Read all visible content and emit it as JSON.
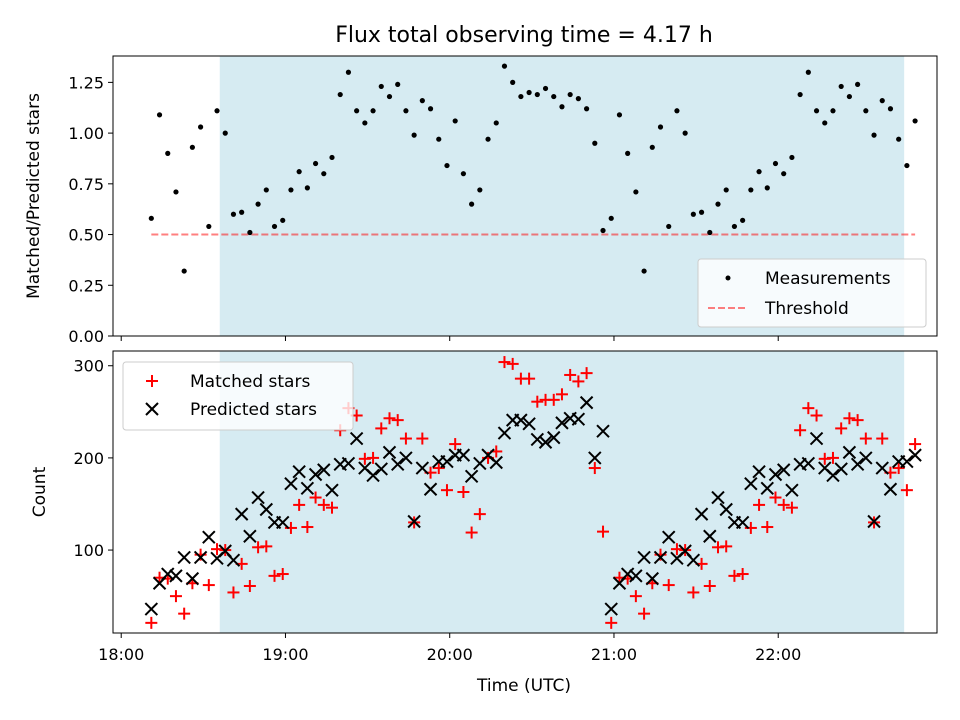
{
  "title": "Flux total observing time = 4.17 h",
  "xlabel": "Time (UTC)",
  "x_ticks": [
    "18:00",
    "19:00",
    "20:00",
    "21:00",
    "22:00"
  ],
  "colors": {
    "highlight": "#add8e6",
    "measurements": "#000000",
    "threshold": "#ff0000",
    "matched": "#ff0000",
    "predicted": "#000000"
  },
  "chart_data": [
    {
      "type": "scatter",
      "ylabel": "Matched/Predicted stars",
      "ylim": [
        0,
        1.38
      ],
      "y_ticks": [
        "0.00",
        "0.25",
        "0.50",
        "0.75",
        "1.00",
        "1.25"
      ],
      "y_tick_values": [
        0,
        0.25,
        0.5,
        0.75,
        1.0,
        1.25
      ],
      "xlim": [
        "17:57",
        "22:58"
      ],
      "highlight_span": [
        "18:36",
        "22:46"
      ],
      "legend_position": "bottom-right",
      "series": [
        {
          "name": "Measurements",
          "marker": "dot",
          "x": [
            "18:11",
            "18:14",
            "18:17",
            "18:20",
            "18:23",
            "18:26",
            "18:29",
            "18:32",
            "18:35",
            "18:38",
            "18:41",
            "18:44",
            "18:47",
            "18:50",
            "18:53",
            "18:56",
            "18:59",
            "19:02",
            "19:05",
            "19:08",
            "19:11",
            "19:14",
            "19:17",
            "19:20",
            "19:23",
            "19:26",
            "19:29",
            "19:32",
            "19:35",
            "19:38",
            "19:41",
            "19:44",
            "19:47",
            "19:50",
            "19:53",
            "19:56",
            "19:59",
            "20:02",
            "20:05",
            "20:08",
            "20:11",
            "20:14",
            "20:17",
            "20:20",
            "20:23",
            "20:26",
            "20:29",
            "20:32",
            "20:35",
            "20:38",
            "20:41",
            "20:44",
            "20:47",
            "20:50",
            "20:53",
            "20:56",
            "20:59",
            "21:02",
            "21:05",
            "21:08",
            "21:11",
            "21:14",
            "21:17",
            "21:20",
            "21:23",
            "21:26",
            "21:29",
            "21:32",
            "21:35",
            "21:38",
            "21:41",
            "21:44",
            "21:47",
            "21:50",
            "21:53",
            "21:56",
            "21:59",
            "22:02",
            "22:05",
            "22:08",
            "22:11",
            "22:14",
            "22:17",
            "22:20",
            "22:23",
            "22:26",
            "22:29",
            "22:32",
            "22:35",
            "22:38",
            "22:41",
            "22:44",
            "22:47",
            "22:50"
          ],
          "y": [
            0.58,
            1.09,
            0.9,
            0.71,
            0.32,
            0.93,
            1.03,
            0.54,
            1.11,
            1.0,
            0.6,
            0.61,
            0.51,
            0.65,
            0.72,
            0.54,
            0.57,
            0.72,
            0.81,
            0.73,
            0.85,
            0.8,
            0.88,
            1.19,
            1.3,
            1.11,
            1.05,
            1.11,
            1.23,
            1.18,
            1.24,
            1.11,
            0.99,
            1.16,
            1.12,
            0.97,
            0.84,
            1.06,
            0.8,
            0.65,
            0.72,
            0.97,
            1.05,
            1.33,
            1.25,
            1.18,
            1.2,
            1.19,
            1.22,
            1.18,
            1.13,
            1.19,
            1.17,
            1.12,
            0.95,
            0.52,
            0.58,
            1.09,
            0.9,
            0.71,
            0.32,
            0.93,
            1.03,
            0.54,
            1.11,
            1.0,
            0.6,
            0.61,
            0.51,
            0.65,
            0.72,
            0.54,
            0.57,
            0.72,
            0.81,
            0.73,
            0.85,
            0.8,
            0.88,
            1.19,
            1.3,
            1.11,
            1.05,
            1.11,
            1.23,
            1.18,
            1.24,
            1.11,
            0.99,
            1.16,
            1.12,
            0.97,
            0.84,
            1.06
          ]
        },
        {
          "name": "Threshold",
          "marker": "dashed-line",
          "x": [
            "18:11",
            "22:50"
          ],
          "y": [
            0.5,
            0.5
          ]
        }
      ]
    },
    {
      "type": "scatter",
      "ylabel": "Count",
      "ylim": [
        10,
        316
      ],
      "y_ticks": [
        "100",
        "200",
        "300"
      ],
      "y_tick_values": [
        100,
        200,
        300
      ],
      "xlim": [
        "17:57",
        "22:58"
      ],
      "highlight_span": [
        "18:36",
        "22:46"
      ],
      "legend_position": "upper-left",
      "series": [
        {
          "name": "Matched stars",
          "marker": "plus",
          "x": [
            "18:11",
            "18:14",
            "18:17",
            "18:20",
            "18:23",
            "18:26",
            "18:29",
            "18:32",
            "18:35",
            "18:38",
            "18:41",
            "18:44",
            "18:47",
            "18:50",
            "18:53",
            "18:56",
            "18:59",
            "19:02",
            "19:05",
            "19:08",
            "19:11",
            "19:14",
            "19:17",
            "19:20",
            "19:23",
            "19:26",
            "19:29",
            "19:32",
            "19:35",
            "19:38",
            "19:41",
            "19:44",
            "19:47",
            "19:50",
            "19:53",
            "19:56",
            "19:59",
            "20:02",
            "20:05",
            "20:08",
            "20:11",
            "20:14",
            "20:17",
            "20:20",
            "20:23",
            "20:26",
            "20:29",
            "20:32",
            "20:35",
            "20:38",
            "20:41",
            "20:44",
            "20:47",
            "20:50",
            "20:53",
            "20:56",
            "20:59",
            "21:02",
            "21:05",
            "21:08",
            "21:11",
            "21:14",
            "21:17",
            "21:20",
            "21:23",
            "21:26",
            "21:29",
            "21:32",
            "21:35",
            "21:38",
            "21:41",
            "21:44",
            "21:47",
            "21:50",
            "21:53",
            "21:56",
            "21:59",
            "22:02",
            "22:05",
            "22:08",
            "22:11",
            "22:14",
            "22:17",
            "22:20",
            "22:23",
            "22:26",
            "22:29",
            "22:32",
            "22:35",
            "22:38",
            "22:41",
            "22:44",
            "22:47",
            "22:50"
          ],
          "y": [
            21,
            70,
            69,
            50,
            31,
            64,
            95,
            62,
            101,
            100,
            54,
            85,
            61,
            103,
            104,
            72,
            74,
            124,
            149,
            125,
            157,
            149,
            146,
            230,
            254,
            246,
            199,
            200,
            232,
            243,
            241,
            221,
            130,
            221,
            184,
            189,
            165,
            215,
            163,
            119,
            139,
            200,
            207,
            304,
            302,
            286,
            286,
            261,
            263,
            263,
            269,
            290,
            283,
            292,
            189,
            120,
            21,
            70,
            69,
            50,
            31,
            64,
            95,
            62,
            101,
            100,
            54,
            85,
            61,
            103,
            104,
            72,
            74,
            124,
            149,
            125,
            157,
            149,
            146,
            230,
            254,
            246,
            199,
            200,
            232,
            243,
            241,
            221,
            130,
            221,
            184,
            189,
            165,
            215
          ]
        },
        {
          "name": "Predicted stars",
          "marker": "x",
          "x": [
            "18:11",
            "18:14",
            "18:17",
            "18:20",
            "18:23",
            "18:26",
            "18:29",
            "18:32",
            "18:35",
            "18:38",
            "18:41",
            "18:44",
            "18:47",
            "18:50",
            "18:53",
            "18:56",
            "18:59",
            "19:02",
            "19:05",
            "19:08",
            "19:11",
            "19:14",
            "19:17",
            "19:20",
            "19:23",
            "19:26",
            "19:29",
            "19:32",
            "19:35",
            "19:38",
            "19:41",
            "19:44",
            "19:47",
            "19:50",
            "19:53",
            "19:56",
            "19:59",
            "20:02",
            "20:05",
            "20:08",
            "20:11",
            "20:14",
            "20:17",
            "20:20",
            "20:23",
            "20:26",
            "20:29",
            "20:32",
            "20:35",
            "20:38",
            "20:41",
            "20:44",
            "20:47",
            "20:50",
            "20:53",
            "20:56",
            "20:59",
            "21:02",
            "21:05",
            "21:08",
            "21:11",
            "21:14",
            "21:17",
            "21:20",
            "21:23",
            "21:26",
            "21:29",
            "21:32",
            "21:35",
            "21:38",
            "21:41",
            "21:44",
            "21:47",
            "21:50",
            "21:53",
            "21:56",
            "21:59",
            "22:02",
            "22:05",
            "22:08",
            "22:11",
            "22:14",
            "22:17",
            "22:20",
            "22:23",
            "22:26",
            "22:29",
            "22:32",
            "22:35",
            "22:38",
            "22:41",
            "22:44",
            "22:47",
            "22:50"
          ],
          "y": [
            36,
            64,
            74,
            72,
            92,
            69,
            92,
            114,
            91,
            99,
            89,
            139,
            115,
            157,
            144,
            130,
            130,
            172,
            185,
            167,
            182,
            187,
            165,
            193,
            194,
            221,
            189,
            181,
            188,
            206,
            193,
            200,
            131,
            189,
            166,
            196,
            196,
            203,
            203,
            180,
            194,
            203,
            195,
            227,
            241,
            241,
            237,
            220,
            217,
            222,
            238,
            243,
            242,
            260,
            200,
            229,
            36,
            64,
            74,
            72,
            92,
            69,
            92,
            114,
            91,
            99,
            89,
            139,
            115,
            157,
            144,
            130,
            130,
            172,
            185,
            167,
            182,
            187,
            165,
            193,
            194,
            221,
            189,
            181,
            188,
            206,
            193,
            200,
            131,
            189,
            166,
            196,
            196,
            203
          ]
        }
      ]
    }
  ]
}
